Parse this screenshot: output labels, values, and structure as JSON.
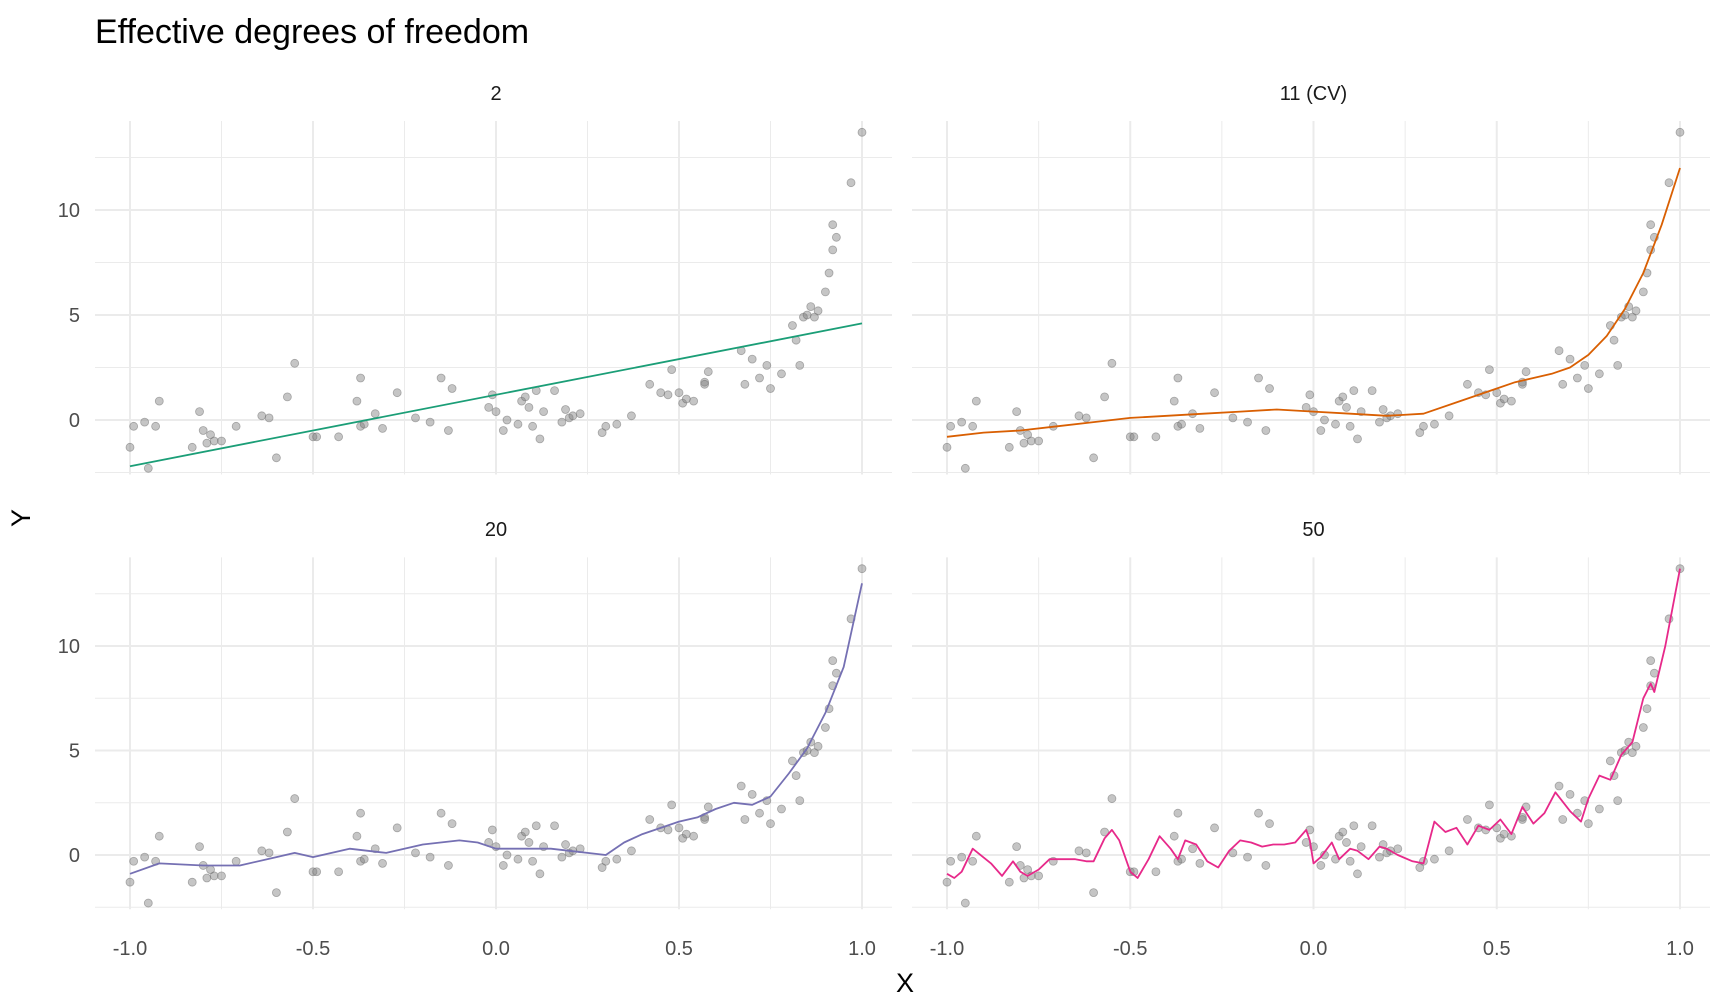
{
  "colors": {
    "panel_2": "#1b9e77",
    "panel_11": "#d95f02",
    "panel_20": "#7570b3",
    "panel_50": "#e7298a"
  },
  "chart_data": {
    "type": "scatter",
    "title": "Effective degrees of freedom",
    "xlabel": "X",
    "ylabel": "Y",
    "xlim": [
      -1.0,
      1.0
    ],
    "ylim": [
      -2.5,
      14.0
    ],
    "x_ticks": [
      -1.0,
      -0.5,
      0.0,
      0.5,
      1.0
    ],
    "x_tick_labels": [
      "-1.0",
      "-0.5",
      "0.0",
      "0.5",
      "1.0"
    ],
    "y_ticks": [
      0,
      5,
      10
    ],
    "y_tick_labels": [
      "0",
      "5",
      "10"
    ],
    "grid": true,
    "legend": "none",
    "points": {
      "x": [
        -1.0,
        -0.99,
        -0.96,
        -0.95,
        -0.93,
        -0.92,
        -0.83,
        -0.81,
        -0.8,
        -0.79,
        -0.78,
        -0.77,
        -0.75,
        -0.71,
        -0.64,
        -0.62,
        -0.6,
        -0.57,
        -0.55,
        -0.5,
        -0.49,
        -0.43,
        -0.38,
        -0.37,
        -0.37,
        -0.36,
        -0.33,
        -0.31,
        -0.27,
        -0.22,
        -0.18,
        -0.15,
        -0.13,
        -0.12,
        -0.02,
        -0.01,
        0.0,
        0.02,
        0.03,
        0.06,
        0.07,
        0.08,
        0.09,
        0.1,
        0.11,
        0.12,
        0.13,
        0.16,
        0.18,
        0.19,
        0.2,
        0.21,
        0.23,
        0.29,
        0.3,
        0.33,
        0.37,
        0.42,
        0.45,
        0.47,
        0.48,
        0.5,
        0.51,
        0.52,
        0.54,
        0.57,
        0.57,
        0.58,
        0.67,
        0.68,
        0.7,
        0.72,
        0.74,
        0.75,
        0.78,
        0.81,
        0.82,
        0.83,
        0.84,
        0.85,
        0.86,
        0.87,
        0.88,
        0.9,
        0.91,
        0.92,
        0.92,
        0.93,
        0.97,
        1.0
      ],
      "y": [
        -1.3,
        -0.3,
        -0.1,
        -2.3,
        -0.3,
        0.9,
        -1.3,
        0.4,
        -0.5,
        -1.1,
        -0.7,
        -1.0,
        -1.0,
        -0.3,
        0.2,
        0.1,
        -1.8,
        1.1,
        2.7,
        -0.8,
        -0.8,
        -0.8,
        0.9,
        2.0,
        -0.3,
        -0.2,
        0.3,
        -0.4,
        1.3,
        0.1,
        -0.1,
        2.0,
        -0.5,
        1.5,
        0.6,
        1.2,
        0.4,
        -0.5,
        0.0,
        -0.2,
        0.9,
        1.1,
        0.6,
        -0.3,
        1.4,
        -0.9,
        0.4,
        1.4,
        -0.1,
        0.5,
        0.1,
        0.2,
        0.3,
        -0.6,
        -0.3,
        -0.2,
        0.2,
        1.7,
        1.3,
        1.2,
        2.4,
        1.3,
        0.8,
        1.0,
        0.9,
        1.8,
        1.7,
        2.3,
        3.3,
        1.7,
        2.9,
        2.0,
        2.6,
        1.5,
        2.2,
        4.5,
        3.8,
        2.6,
        4.9,
        5.0,
        5.4,
        4.9,
        5.2,
        6.1,
        7.0,
        8.1,
        9.3,
        8.7,
        11.3,
        13.7
      ]
    },
    "panels": [
      {
        "label": "2",
        "color_key": "panel_2",
        "x": [
          -1.0,
          1.0
        ],
        "y": [
          -2.2,
          4.6
        ]
      },
      {
        "label": "11 (CV)",
        "color_key": "panel_11",
        "x": [
          -1.0,
          -0.9,
          -0.8,
          -0.7,
          -0.6,
          -0.5,
          -0.4,
          -0.3,
          -0.2,
          -0.1,
          0.0,
          0.1,
          0.2,
          0.3,
          0.4,
          0.5,
          0.55,
          0.6,
          0.65,
          0.7,
          0.75,
          0.8,
          0.85,
          0.9,
          0.95,
          1.0
        ],
        "y": [
          -0.8,
          -0.6,
          -0.5,
          -0.3,
          -0.1,
          0.1,
          0.2,
          0.3,
          0.4,
          0.5,
          0.4,
          0.3,
          0.2,
          0.3,
          0.9,
          1.5,
          1.8,
          2.0,
          2.2,
          2.5,
          3.1,
          4.0,
          5.3,
          7.0,
          9.3,
          12.0
        ]
      },
      {
        "label": "20",
        "color_key": "panel_20",
        "x": [
          -1.0,
          -0.92,
          -0.8,
          -0.7,
          -0.6,
          -0.55,
          -0.5,
          -0.4,
          -0.35,
          -0.3,
          -0.2,
          -0.1,
          -0.05,
          0.0,
          0.05,
          0.1,
          0.15,
          0.2,
          0.25,
          0.3,
          0.35,
          0.4,
          0.5,
          0.55,
          0.6,
          0.65,
          0.7,
          0.75,
          0.8,
          0.85,
          0.9,
          0.95,
          1.0
        ],
        "y": [
          -0.9,
          -0.4,
          -0.5,
          -0.5,
          -0.1,
          0.1,
          -0.1,
          0.3,
          0.2,
          0.1,
          0.5,
          0.7,
          0.6,
          0.3,
          0.3,
          0.3,
          0.3,
          0.2,
          0.1,
          0.0,
          0.6,
          1.0,
          1.6,
          1.8,
          2.2,
          2.5,
          2.4,
          2.8,
          3.9,
          5.1,
          6.8,
          9.0,
          13.0
        ]
      },
      {
        "label": "50",
        "color_key": "panel_50",
        "x": [
          -1.0,
          -0.98,
          -0.96,
          -0.93,
          -0.88,
          -0.85,
          -0.82,
          -0.8,
          -0.78,
          -0.75,
          -0.72,
          -0.69,
          -0.65,
          -0.62,
          -0.6,
          -0.57,
          -0.55,
          -0.53,
          -0.5,
          -0.48,
          -0.45,
          -0.42,
          -0.39,
          -0.37,
          -0.35,
          -0.32,
          -0.29,
          -0.26,
          -0.23,
          -0.2,
          -0.17,
          -0.14,
          -0.11,
          -0.08,
          -0.05,
          -0.02,
          -0.01,
          0.0,
          0.02,
          0.05,
          0.07,
          0.1,
          0.12,
          0.15,
          0.18,
          0.2,
          0.23,
          0.27,
          0.3,
          0.33,
          0.36,
          0.39,
          0.42,
          0.45,
          0.48,
          0.51,
          0.54,
          0.57,
          0.6,
          0.63,
          0.66,
          0.7,
          0.73,
          0.75,
          0.78,
          0.81,
          0.84,
          0.87,
          0.9,
          0.92,
          0.93,
          0.96,
          1.0
        ],
        "y": [
          -0.9,
          -1.1,
          -0.8,
          0.3,
          -0.4,
          -1.0,
          -0.3,
          -0.8,
          -1.0,
          -0.7,
          -0.2,
          -0.2,
          -0.2,
          -0.3,
          -0.3,
          0.8,
          1.2,
          0.7,
          -0.8,
          -1.1,
          -0.2,
          0.9,
          0.3,
          -0.2,
          0.7,
          0.5,
          -0.3,
          -0.6,
          0.2,
          0.7,
          0.6,
          0.4,
          0.5,
          0.5,
          0.6,
          1.2,
          0.7,
          -0.4,
          -0.1,
          0.6,
          -0.2,
          0.3,
          0.2,
          -0.2,
          0.4,
          0.3,
          0.0,
          -0.3,
          -0.4,
          1.6,
          1.1,
          1.3,
          0.5,
          1.4,
          1.2,
          1.7,
          1.0,
          2.3,
          1.5,
          2.0,
          3.0,
          2.1,
          1.6,
          2.7,
          3.8,
          3.6,
          4.8,
          5.4,
          7.5,
          8.2,
          7.8,
          10.0,
          13.7
        ]
      }
    ]
  }
}
